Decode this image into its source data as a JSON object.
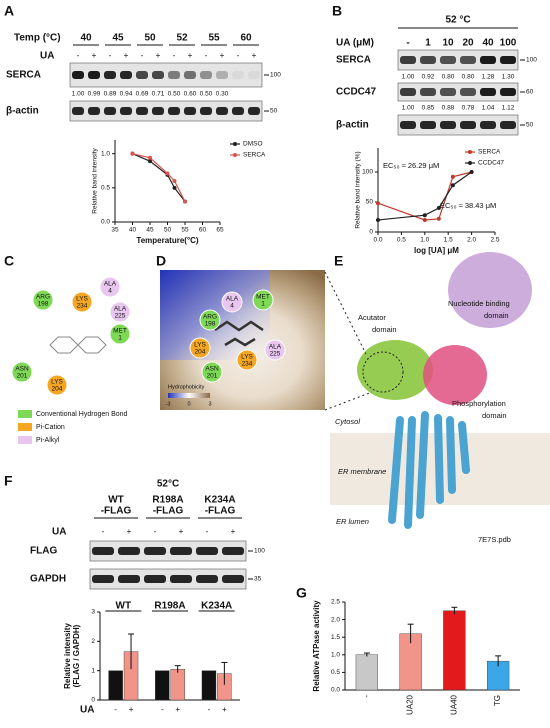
{
  "panel_labels": [
    "A",
    "B",
    "C",
    "D",
    "E",
    "F",
    "G"
  ],
  "panel_a": {
    "temp_label": "Temp (°C)",
    "temps": [
      "40",
      "45",
      "50",
      "52",
      "55",
      "60"
    ],
    "ua_label": "UA",
    "ua_signs": [
      "-",
      "+"
    ],
    "blots": [
      {
        "name": "SERCA",
        "marker": "100",
        "values": [
          "1.00",
          "0.99",
          "0.89",
          "0.94",
          "0.69",
          "0.71",
          "0.50",
          "0.60",
          "0.50",
          "0.30"
        ]
      },
      {
        "name": "β-actin",
        "marker": "50"
      }
    ]
  },
  "panel_b": {
    "condition": "52 °C",
    "ua_label": "UA (μM)",
    "doses": [
      "-",
      "1",
      "10",
      "20",
      "40",
      "100"
    ],
    "blots": [
      {
        "name": "SERCA",
        "marker": "100",
        "values": [
          "1.00",
          "0.92",
          "0.80",
          "0.80",
          "1.28",
          "1.30"
        ]
      },
      {
        "name": "CCDC47",
        "marker": "60",
        "values": [
          "1.00",
          "0.85",
          "0.88",
          "0.78",
          "1.04",
          "1.12"
        ]
      },
      {
        "name": "β-actin",
        "marker": "50"
      }
    ]
  },
  "panel_c": {
    "residues": [
      {
        "name": "ARG",
        "num": "198"
      },
      {
        "name": "LYS",
        "num": "234"
      },
      {
        "name": "ALA",
        "num": "4"
      },
      {
        "name": "ALA",
        "num": "225"
      },
      {
        "name": "MET",
        "num": "1"
      },
      {
        "name": "ASN",
        "num": "201"
      },
      {
        "name": "LYS",
        "num": "204"
      }
    ],
    "legend": [
      "Conventional Hydrogen Bond",
      "Pi-Cation",
      "Pi-Alkyl"
    ]
  },
  "panel_d": {
    "residues": [
      {
        "name": "ALA",
        "num": "4"
      },
      {
        "name": "MET",
        "num": "1"
      },
      {
        "name": "ARG",
        "num": "198"
      },
      {
        "name": "LYS",
        "num": "204"
      },
      {
        "name": "ASN",
        "num": "201"
      },
      {
        "name": "LYS",
        "num": "234"
      },
      {
        "name": "ALA",
        "num": "225"
      }
    ],
    "scale_title": "Hydrophobicity",
    "scale_ticks": [
      "-3",
      "0",
      "3"
    ]
  },
  "panel_e": {
    "domains": [
      [
        "Acutator",
        "domain"
      ],
      [
        "Nucleotide binding",
        "domain"
      ],
      [
        "Phosphorylation",
        "domain"
      ]
    ],
    "regions": [
      "Cytosol",
      "ER membrane",
      "ER lumen"
    ],
    "pdb": "7E7S.pdb"
  },
  "panel_f": {
    "condition": "52°C",
    "constructs": [
      [
        "WT",
        "-FLAG"
      ],
      [
        "R198A",
        "-FLAG"
      ],
      [
        "K234A",
        "-FLAG"
      ]
    ],
    "ua_label": "UA",
    "ua_signs": [
      "-",
      "+"
    ],
    "blots": [
      {
        "name": "FLAG",
        "marker": "100"
      },
      {
        "name": "GAPDH",
        "marker": "35"
      }
    ]
  },
  "chart_data": [
    {
      "type": "line",
      "xlabel": "Temperature(°C)",
      "ylabel": "Relative band intensity",
      "x": [
        40,
        45,
        50,
        52,
        55
      ],
      "series": [
        {
          "name": "DMSO",
          "color": "#222222",
          "values": [
            1.0,
            0.89,
            0.69,
            0.5,
            0.3
          ]
        },
        {
          "name": "SERCA",
          "color": "#d9534f",
          "values": [
            1.0,
            0.94,
            0.71,
            0.6,
            0.3
          ]
        }
      ],
      "xlim": [
        35,
        65
      ],
      "xticks": [
        35,
        40,
        45,
        50,
        55,
        60,
        65
      ],
      "ylim": [
        0,
        1.2
      ],
      "yticks": [
        {
          "value": 0,
          "label": "0.0"
        },
        {
          "value": 0.5,
          "label": "0.5"
        },
        {
          "value": 1,
          "label": "1.0"
        }
      ],
      "legend": "right"
    },
    {
      "type": "line",
      "xlabel": "log [UA] μM",
      "ylabel": "Relative band intensity (%)",
      "x": [
        0,
        1,
        1.3,
        1.6,
        2
      ],
      "series": [
        {
          "name": "SERCA",
          "color": "#c0392b",
          "values": [
            48,
            20,
            22,
            92,
            100
          ]
        },
        {
          "name": "CCDC47",
          "color": "#222222",
          "values": [
            20,
            28,
            40,
            78,
            100
          ]
        }
      ],
      "annotations": [
        {
          "text": "EC₅₀ ≈ 26.29 μM",
          "color": "#c0392b"
        },
        {
          "text": "EC₅₀ ≈ 38.43 μM",
          "color": "#666666"
        }
      ],
      "xlim": [
        0,
        2.5
      ],
      "xticks": [
        {
          "value": 0,
          "label": "0.0"
        },
        {
          "value": 0.5,
          "label": "0.5"
        },
        {
          "value": 1,
          "label": "1.0"
        },
        {
          "value": 1.5,
          "label": "1.5"
        },
        {
          "value": 2,
          "label": "2.0"
        },
        {
          "value": 2.5,
          "label": "2.5"
        }
      ],
      "ylim": [
        0,
        140
      ],
      "yticks": [
        0,
        50,
        100
      ],
      "legend": "upper right"
    },
    {
      "type": "bar",
      "ylabel": [
        "Relative intensity",
        "(FLAG / GAPDH)"
      ],
      "categories": [
        "WT",
        "R198A",
        "K234A"
      ],
      "ua_label": "UA",
      "series": [
        {
          "name": "-",
          "color": "#111111",
          "values": [
            1.0,
            1.0,
            1.0
          ],
          "errors": [
            0,
            0,
            0
          ]
        },
        {
          "name": "+",
          "color": "#f1948a",
          "values": [
            1.65,
            1.05,
            0.9
          ],
          "errors": [
            0.6,
            0.12,
            0.38
          ]
        }
      ],
      "ylim": [
        0,
        3
      ],
      "yticks": [
        0,
        1,
        2,
        3
      ]
    },
    {
      "type": "bar",
      "ylabel": "Relative ATPase activity",
      "categories": [
        "-",
        "UA20",
        "UA40",
        "TG"
      ],
      "values": [
        1.0,
        1.6,
        2.25,
        0.82
      ],
      "errors": [
        0.05,
        0.27,
        0.1,
        0.15
      ],
      "colors": [
        "#c8c8c8",
        "#f1948a",
        "#e31a1c",
        "#3ba7e8"
      ],
      "ylim": [
        0,
        2.5
      ],
      "yticks": [
        {
          "value": 0,
          "label": "0.0"
        },
        {
          "value": 0.5,
          "label": "0.5"
        },
        {
          "value": 1,
          "label": "1.0"
        },
        {
          "value": 1.5,
          "label": "1.5"
        },
        {
          "value": 2,
          "label": "2.0"
        },
        {
          "value": 2.5,
          "label": "2.5"
        }
      ]
    }
  ]
}
